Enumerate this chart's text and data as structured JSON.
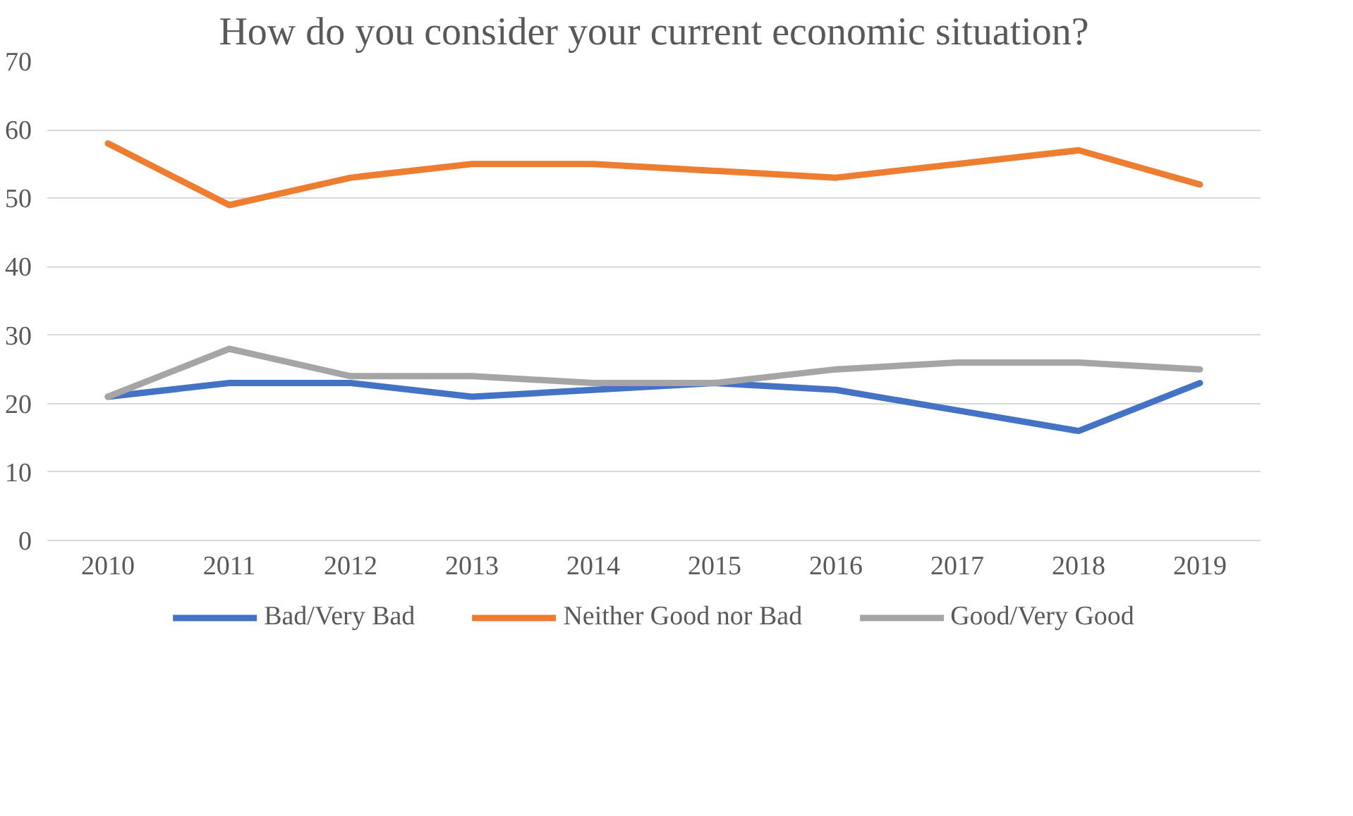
{
  "chart_data": {
    "type": "line",
    "title": "How do you consider your current economic situation?",
    "categories": [
      "2010",
      "2011",
      "2012",
      "2013",
      "2014",
      "2015",
      "2016",
      "2017",
      "2018",
      "2019"
    ],
    "series": [
      {
        "name": "Bad/Very Bad",
        "color": "#4472c4",
        "values": [
          21,
          23,
          23,
          21,
          22,
          23,
          22,
          19,
          16,
          23
        ]
      },
      {
        "name": "Neither Good nor Bad",
        "color": "#ed7d31",
        "values": [
          58,
          49,
          53,
          55,
          55,
          54,
          53,
          55,
          57,
          52
        ]
      },
      {
        "name": "Good/Very Good",
        "color": "#a5a5a5",
        "values": [
          21,
          28,
          24,
          24,
          23,
          23,
          25,
          26,
          26,
          25
        ]
      }
    ],
    "ylim": [
      0,
      70
    ],
    "yticks": [
      0,
      10,
      20,
      30,
      40,
      50,
      60,
      70
    ],
    "grid": "y",
    "legend": "bottom",
    "marker": "none",
    "line_style": "solid"
  }
}
